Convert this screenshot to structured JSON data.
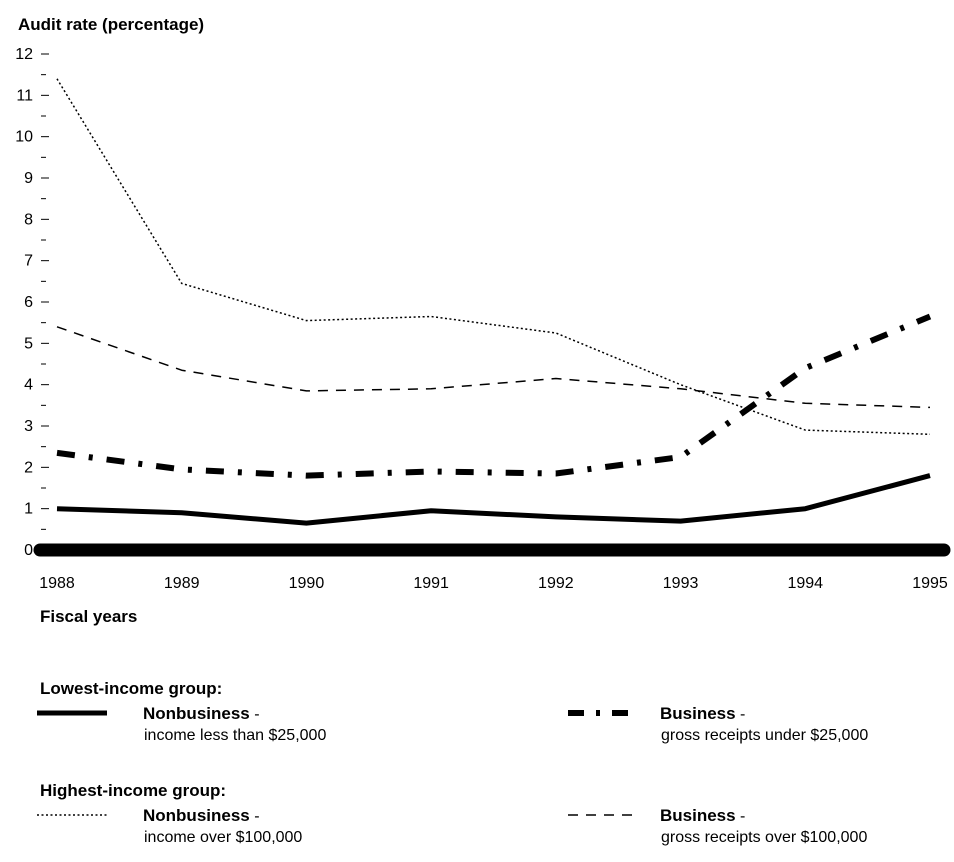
{
  "chart_data": {
    "type": "line",
    "ylabel": "Audit rate (percentage)",
    "xlabel": "Fiscal years",
    "ylim": [
      0,
      12
    ],
    "yticks": [
      "0",
      "1",
      "2",
      "3",
      "4",
      "5",
      "6",
      "7",
      "8",
      "9",
      "10",
      "11",
      "12"
    ],
    "categories": [
      "1988",
      "1989",
      "1990",
      "1991",
      "1992",
      "1993",
      "1994",
      "1995"
    ],
    "series": [
      {
        "key": "low_nonbusiness",
        "color": "#000000",
        "style": "solid-thick",
        "values": [
          1.0,
          0.9,
          0.65,
          0.95,
          0.8,
          0.7,
          1.0,
          1.8
        ]
      },
      {
        "key": "low_business",
        "color": "#000000",
        "style": "dash-dot-thick",
        "values": [
          2.35,
          1.95,
          1.8,
          1.9,
          1.85,
          2.25,
          4.4,
          5.65
        ]
      },
      {
        "key": "high_nonbusiness",
        "color": "#000000",
        "style": "dotted-thin",
        "values": [
          11.4,
          6.45,
          5.55,
          5.65,
          5.25,
          4.0,
          2.9,
          2.8
        ]
      },
      {
        "key": "high_business",
        "color": "#000000",
        "style": "dashed-thin",
        "values": [
          5.4,
          4.35,
          3.85,
          3.9,
          4.15,
          3.9,
          3.55,
          3.45
        ]
      }
    ],
    "grid": false,
    "legend": {
      "position": "bottom",
      "groups": [
        {
          "title": "Lowest-income group:",
          "items": [
            {
              "series": "low_nonbusiness",
              "label": "Nonbusiness",
              "dash": "-",
              "sublabel": "income less than $25,000"
            },
            {
              "series": "low_business",
              "label": "Business",
              "dash": "-",
              "sublabel": "gross receipts under $25,000"
            }
          ]
        },
        {
          "title": "Highest-income group:",
          "items": [
            {
              "series": "high_nonbusiness",
              "label": "Nonbusiness",
              "dash": "-",
              "sublabel": "income over $100,000"
            },
            {
              "series": "high_business",
              "label": "Business",
              "dash": "-",
              "sublabel": "gross receipts over $100,000"
            }
          ]
        }
      ]
    }
  }
}
